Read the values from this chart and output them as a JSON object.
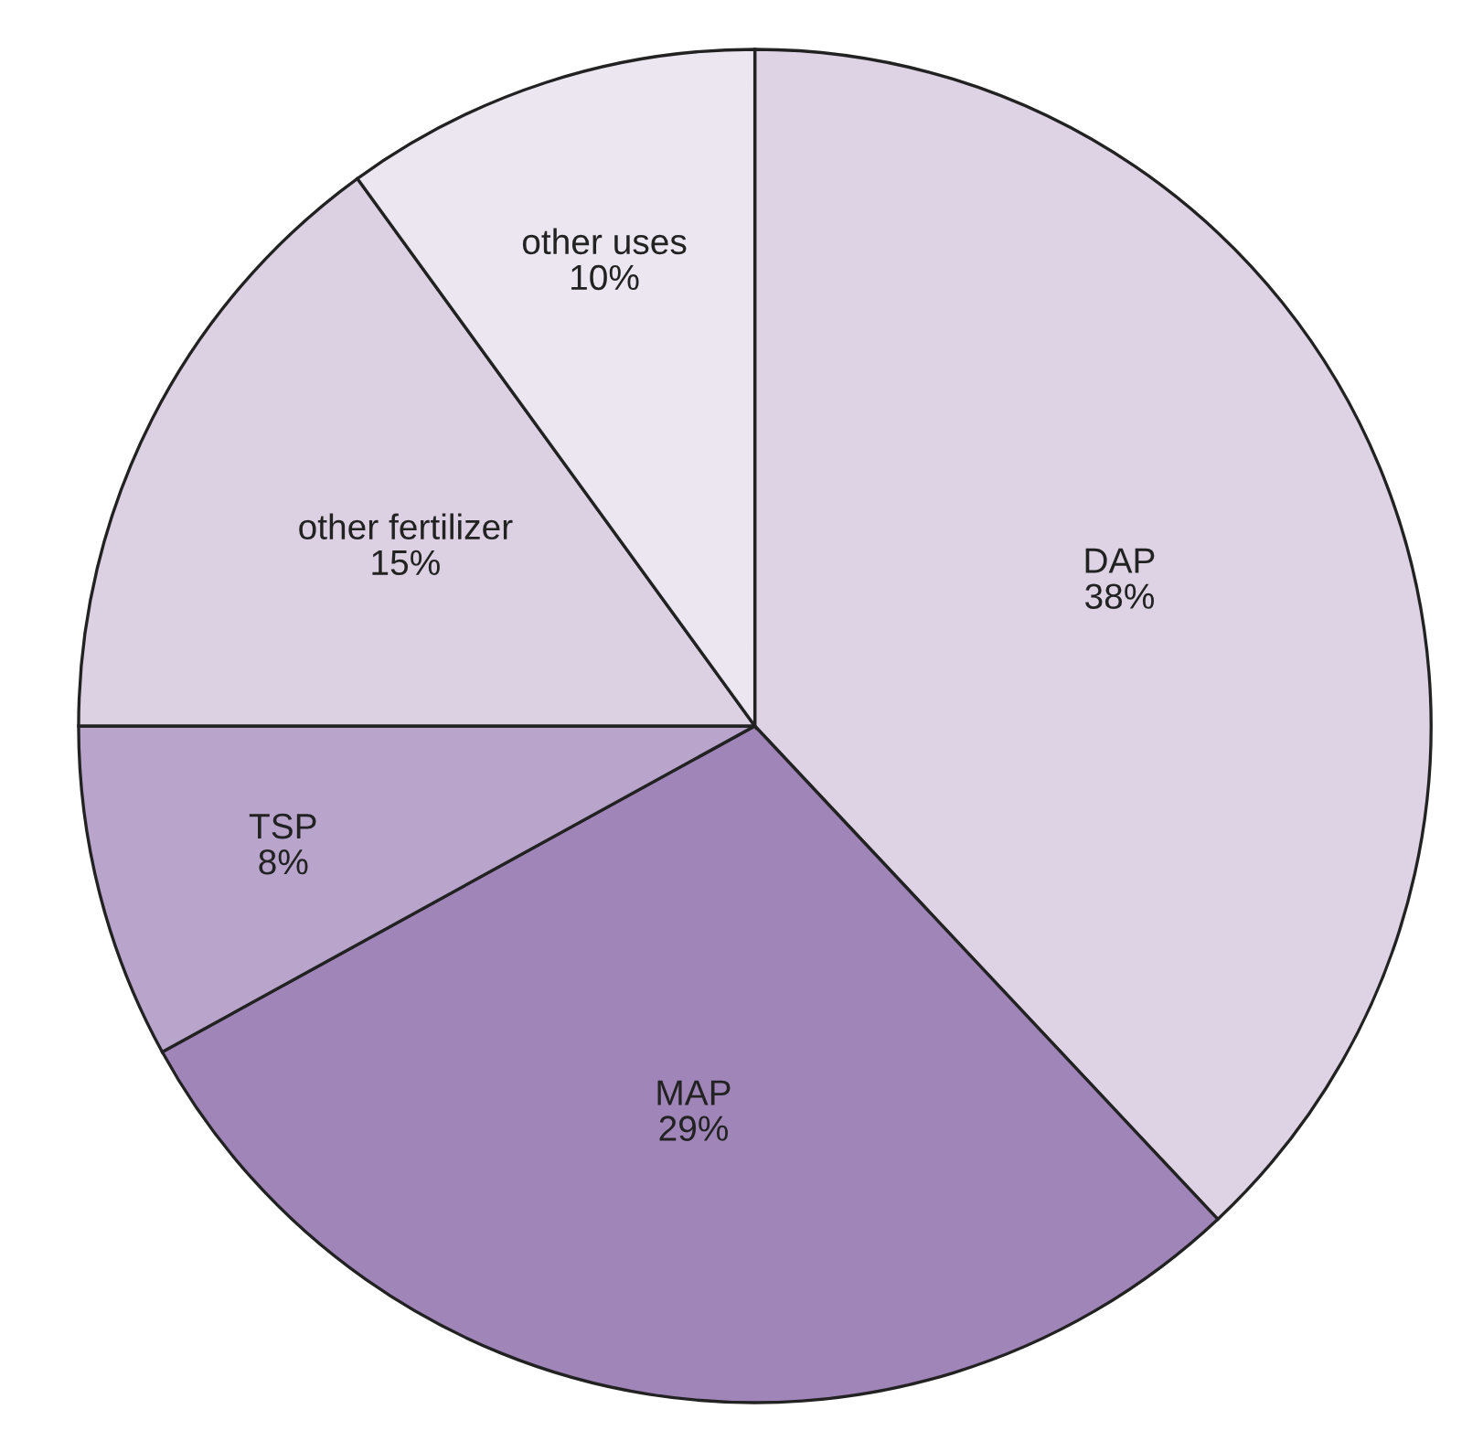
{
  "chart_data": {
    "type": "pie",
    "categories": [
      "DAP",
      "MAP",
      "TSP",
      "other fertilizer",
      "other uses"
    ],
    "values": [
      38,
      29,
      8,
      15,
      10
    ],
    "value_labels": [
      "38%",
      "29%",
      "8%",
      "15%",
      "10%"
    ],
    "colors": [
      "#ddd3e5",
      "#a085b8",
      "#b9a4cc",
      "#dcd0e3",
      "#ece6f0"
    ]
  }
}
